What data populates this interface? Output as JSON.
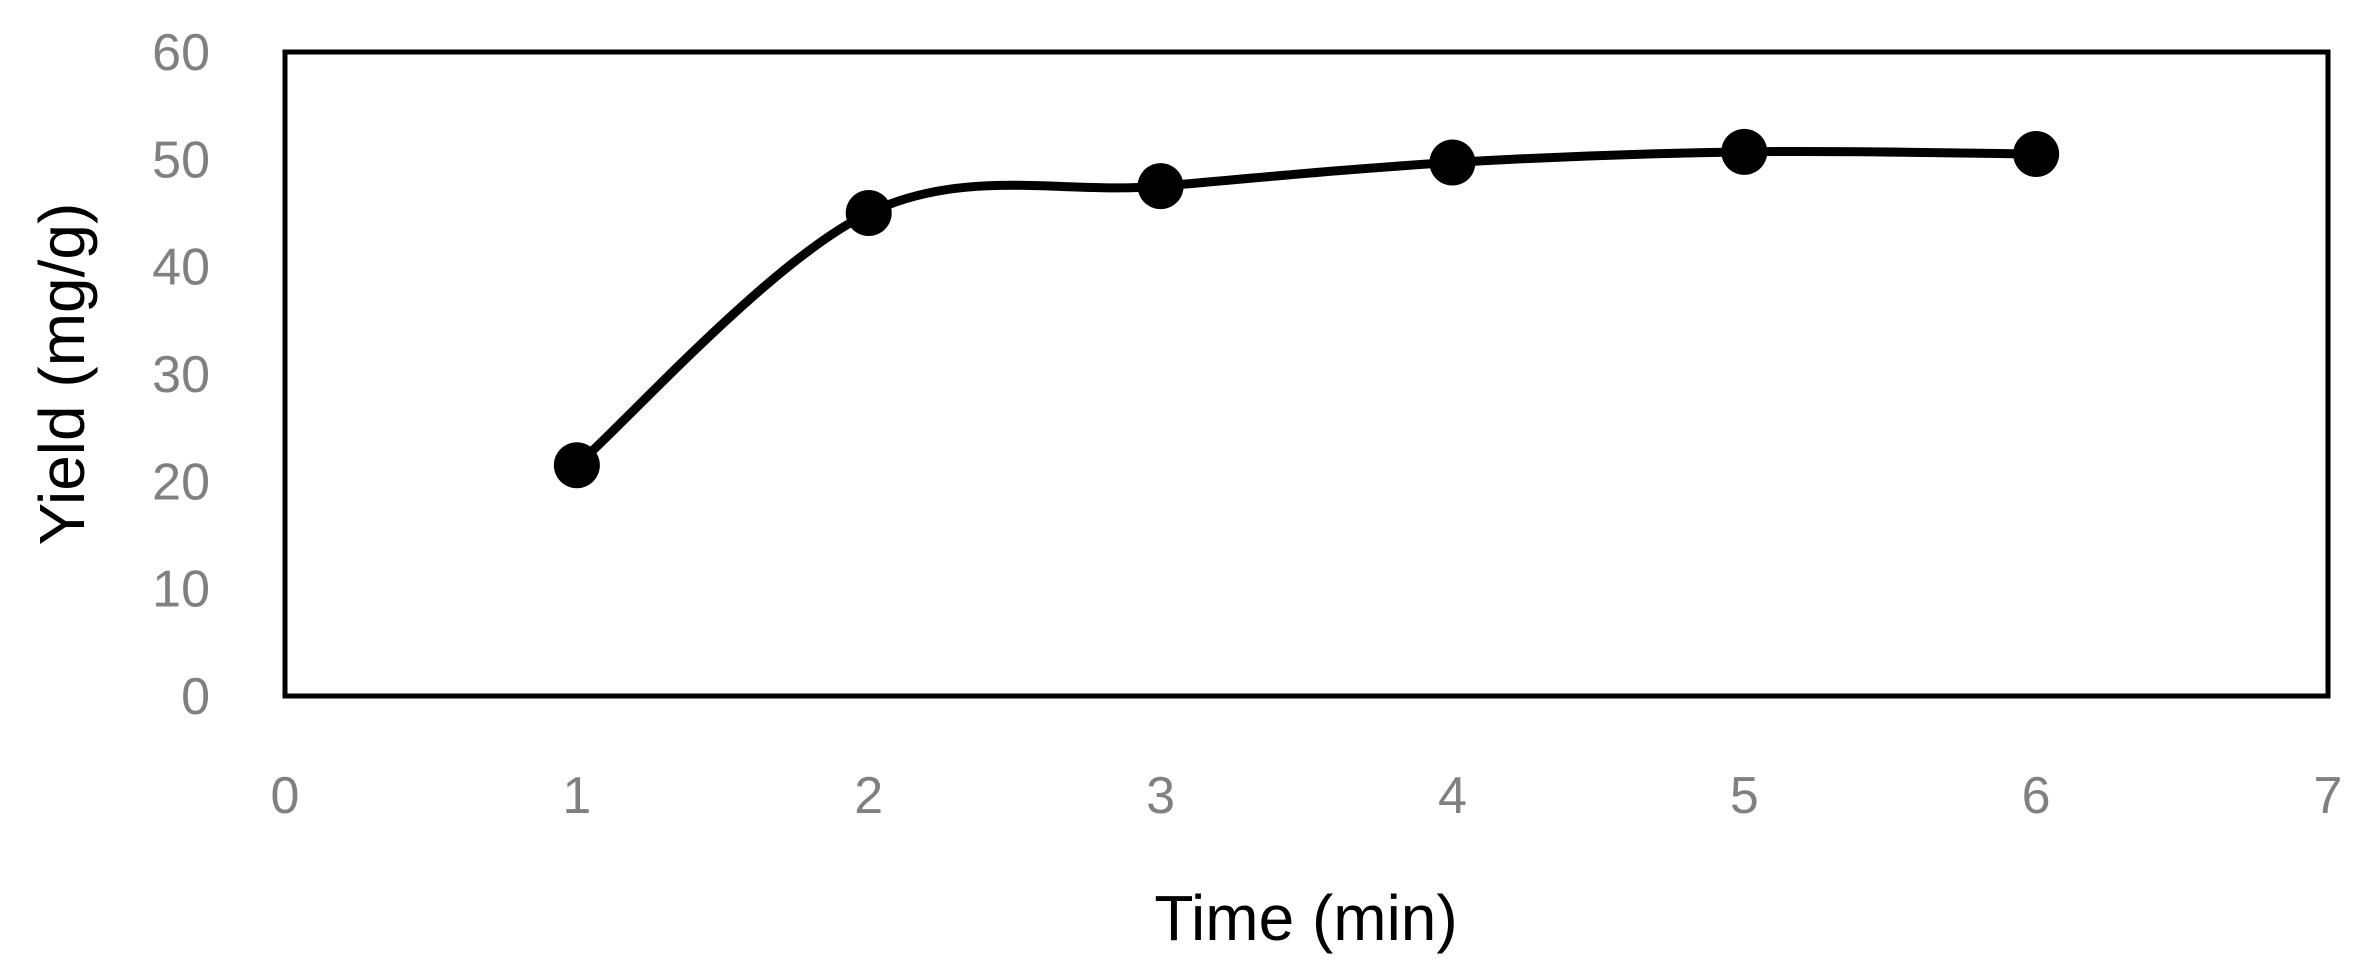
{
  "chart_data": {
    "type": "line",
    "title": "",
    "xlabel": "Time (min)",
    "ylabel": "Yield (mg/g)",
    "xlim": [
      0,
      7
    ],
    "ylim": [
      0,
      60
    ],
    "xticks": [
      0,
      1,
      2,
      3,
      4,
      5,
      6,
      7
    ],
    "yticks": [
      0,
      10,
      20,
      30,
      40,
      50,
      60
    ],
    "grid": false,
    "smoothed": true,
    "series": [
      {
        "x": [
          1,
          2,
          3,
          4,
          5,
          6
        ],
        "y": [
          21.5,
          45,
          47.5,
          49.7,
          50.7,
          50.5
        ],
        "color": "#000000",
        "marker": "circle"
      }
    ]
  }
}
